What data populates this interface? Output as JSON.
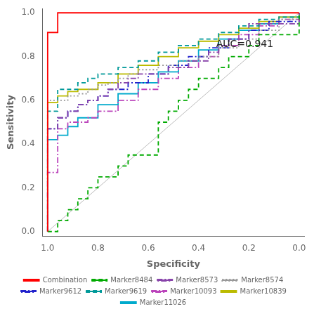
{
  "chart_data": {
    "type": "line",
    "xlabel": "Specificity",
    "ylabel": "Sensitivity",
    "xlim": [
      1.02,
      -0.02
    ],
    "ylim": [
      -0.02,
      1.02
    ],
    "xticks": [
      {
        "value": 1.0,
        "label": "1.0"
      },
      0.8,
      0.6,
      0.4,
      0.2,
      {
        "value": 0.0,
        "label": "0.0"
      }
    ],
    "yticks": [
      {
        "value": 0.0,
        "label": "0.0"
      },
      0.2,
      0.4,
      0.6,
      0.8,
      {
        "value": 1.0,
        "label": "1.0"
      }
    ],
    "grid": false,
    "legend": "bottom",
    "annotations": [
      {
        "text": "AUC=0.941",
        "x": 0.33,
        "y": 0.855
      }
    ],
    "series": [
      {
        "name": "Combination",
        "type": "step",
        "color": "#FF0000",
        "line_style": "solid",
        "x": [
          1.0,
          1.0,
          1.0,
          0.96,
          0.96,
          0.96,
          0.92,
          0.92,
          0.88,
          0.88,
          0.0
        ],
        "values": [
          0.0,
          0.45,
          0.91,
          0.91,
          0.95,
          1.0,
          1.0,
          1.0,
          1.0,
          1.0,
          1.0
        ]
      },
      {
        "name": "Marker8484",
        "type": "step",
        "color": "#00AA00",
        "line_style": "dashed",
        "x": [
          1.0,
          0.96,
          0.96,
          0.92,
          0.92,
          0.88,
          0.88,
          0.84,
          0.84,
          0.8,
          0.8,
          0.76,
          0.72,
          0.68,
          0.6,
          0.56,
          0.52,
          0.48,
          0.44,
          0.4,
          0.32,
          0.28,
          0.2,
          0.16,
          0.0
        ],
        "values": [
          0.0,
          0.0,
          0.05,
          0.05,
          0.1,
          0.1,
          0.15,
          0.15,
          0.2,
          0.2,
          0.25,
          0.25,
          0.3,
          0.35,
          0.35,
          0.5,
          0.55,
          0.6,
          0.65,
          0.7,
          0.75,
          0.8,
          0.85,
          0.9,
          1.0
        ]
      },
      {
        "name": "Marker8573",
        "type": "step",
        "color": "#8844AA",
        "line_style": "dashdot",
        "x": [
          1.0,
          1.0,
          0.96,
          0.96,
          0.92,
          0.92,
          0.88,
          0.88,
          0.84,
          0.8,
          0.76,
          0.72,
          0.68,
          0.64,
          0.56,
          0.52,
          0.44,
          0.36,
          0.32,
          0.28,
          0.2,
          0.0
        ],
        "values": [
          0.0,
          0.47,
          0.47,
          0.52,
          0.52,
          0.55,
          0.55,
          0.58,
          0.6,
          0.62,
          0.65,
          0.68,
          0.7,
          0.72,
          0.72,
          0.75,
          0.78,
          0.82,
          0.85,
          0.88,
          0.95,
          1.0
        ]
      },
      {
        "name": "Marker8574",
        "type": "step",
        "color": "#999999",
        "line_style": "dotted",
        "x": [
          1.0,
          1.0,
          0.96,
          0.92,
          0.88,
          0.84,
          0.8,
          0.76,
          0.72,
          0.68,
          0.64,
          0.56,
          0.48,
          0.4,
          0.32,
          0.24,
          0.16,
          0.08,
          0.0
        ],
        "values": [
          0.0,
          0.6,
          0.6,
          0.62,
          0.63,
          0.65,
          0.67,
          0.68,
          0.7,
          0.72,
          0.74,
          0.76,
          0.78,
          0.8,
          0.84,
          0.88,
          0.92,
          0.97,
          1.0
        ]
      },
      {
        "name": "Marker9612",
        "type": "step",
        "color": "#2222CC",
        "line_style": "dashdot",
        "x": [
          1.0,
          1.0,
          0.96,
          0.96,
          0.92,
          0.92,
          0.88,
          0.88,
          0.84,
          0.8,
          0.76,
          0.68,
          0.6,
          0.52,
          0.44,
          0.36,
          0.28,
          0.2,
          0.12,
          0.0
        ],
        "values": [
          0.0,
          0.47,
          0.47,
          0.52,
          0.52,
          0.55,
          0.55,
          0.58,
          0.6,
          0.62,
          0.65,
          0.68,
          0.72,
          0.76,
          0.8,
          0.84,
          0.88,
          0.92,
          0.96,
          1.0
        ]
      },
      {
        "name": "Marker9619",
        "type": "step",
        "color": "#009999",
        "line_style": "dashed",
        "x": [
          1.0,
          1.0,
          0.96,
          0.96,
          0.92,
          0.88,
          0.84,
          0.8,
          0.72,
          0.64,
          0.56,
          0.48,
          0.4,
          0.32,
          0.24,
          0.16,
          0.08,
          0.0
        ],
        "values": [
          0.0,
          0.55,
          0.55,
          0.65,
          0.65,
          0.68,
          0.7,
          0.72,
          0.75,
          0.78,
          0.82,
          0.85,
          0.88,
          0.91,
          0.94,
          0.97,
          0.98,
          1.0
        ]
      },
      {
        "name": "Marker10093",
        "type": "step",
        "color": "#BB44BB",
        "line_style": "dashdot",
        "x": [
          1.0,
          1.0,
          0.96,
          0.96,
          0.92,
          0.92,
          0.88,
          0.84,
          0.8,
          0.72,
          0.64,
          0.56,
          0.48,
          0.4,
          0.32,
          0.24,
          0.16,
          0.08,
          0.0
        ],
        "values": [
          0.0,
          0.27,
          0.27,
          0.47,
          0.47,
          0.5,
          0.5,
          0.52,
          0.55,
          0.6,
          0.65,
          0.7,
          0.75,
          0.8,
          0.85,
          0.9,
          0.94,
          0.97,
          1.0
        ]
      },
      {
        "name": "Marker10839",
        "type": "step",
        "color": "#BBBB00",
        "line_style": "solid",
        "x": [
          1.0,
          1.0,
          0.96,
          0.92,
          0.88,
          0.8,
          0.72,
          0.64,
          0.56,
          0.48,
          0.4,
          0.32,
          0.24,
          0.16,
          0.08,
          0.0
        ],
        "values": [
          0.0,
          0.59,
          0.62,
          0.64,
          0.65,
          0.68,
          0.72,
          0.76,
          0.8,
          0.84,
          0.87,
          0.9,
          0.93,
          0.96,
          0.98,
          1.0
        ]
      },
      {
        "name": "Marker11026",
        "type": "step",
        "color": "#00AACC",
        "line_style": "solid",
        "x": [
          1.0,
          1.0,
          0.96,
          0.92,
          0.88,
          0.8,
          0.72,
          0.64,
          0.56,
          0.48,
          0.4,
          0.32,
          0.24,
          0.16,
          0.08,
          0.0
        ],
        "values": [
          0.0,
          0.42,
          0.44,
          0.48,
          0.52,
          0.58,
          0.63,
          0.68,
          0.73,
          0.78,
          0.83,
          0.88,
          0.92,
          0.95,
          0.98,
          1.0
        ]
      },
      {
        "type": "line",
        "color": "#BBBBBB",
        "line_style": "solid",
        "x": [
          1.0,
          0.0
        ],
        "values": [
          0.0,
          1.0
        ]
      }
    ]
  }
}
